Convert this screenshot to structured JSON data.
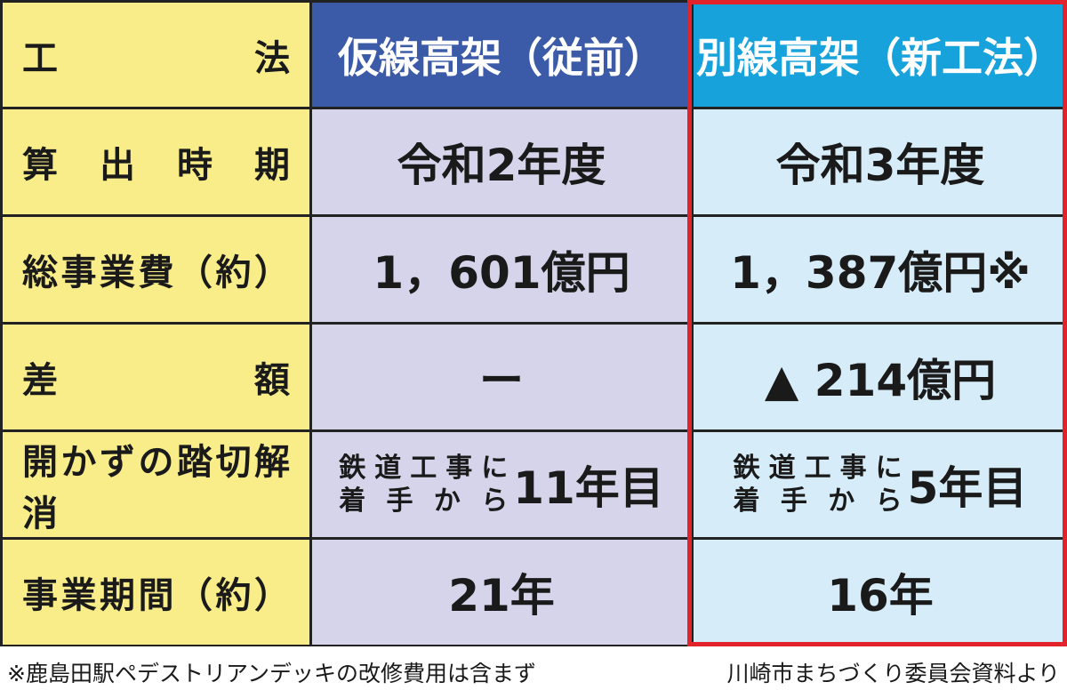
{
  "table": {
    "header": [
      "工法",
      "仮線高架（従前）",
      "別線高架（新工法）"
    ],
    "rows": [
      [
        "算出時期",
        "令和2年度",
        "令和3年度"
      ],
      [
        "総事業費（約）",
        "1，601億円",
        "1，387億円※"
      ],
      [
        "差額",
        "ー",
        "▲ 214億円"
      ],
      [
        "開かずの踏切解消",
        {
          "note": [
            "鉄道工事に",
            "着手から"
          ],
          "value": "11年目"
        },
        {
          "note": [
            "鉄道工事に",
            "着手から"
          ],
          "value": "5年目"
        }
      ],
      [
        "事業期間（約）",
        "21年",
        "16年"
      ]
    ]
  },
  "footer": {
    "note": "※鹿島田駅ペデストリアンデッキの改修費用は含まず",
    "source": "川崎市まちづくり委員会資料より"
  }
}
